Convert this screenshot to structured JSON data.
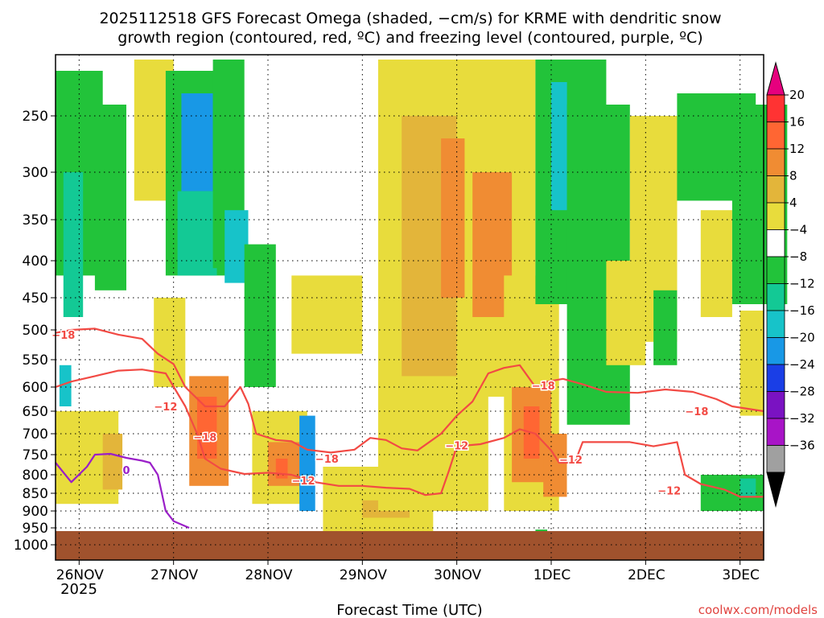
{
  "chart_data": {
    "type": "heatmap",
    "title_line1": "2025112518 GFS Forecast Omega (shaded, −cm/s) for KRME with dendritic snow",
    "title_line2": "growth region (contoured, red, ºC) and freezing level (contoured, purple, ºC)",
    "xlabel": "Forecast Time (UTC)",
    "credit": "coolwx.com/models",
    "y_axis": {
      "scale": "pressure",
      "reversed": true,
      "ticks": [
        250,
        300,
        350,
        400,
        450,
        500,
        550,
        600,
        650,
        700,
        750,
        800,
        850,
        900,
        950,
        1000
      ],
      "tick_labels": [
        "250",
        "300",
        "350",
        "400",
        "450",
        "500",
        "550",
        "600",
        "650",
        "700",
        "750",
        "800",
        "850",
        "900",
        "950",
        "1000"
      ],
      "range": [
        200,
        1012
      ]
    },
    "x_axis": {
      "range": [
        "2025-11-25T18",
        "2025-12-03T06"
      ],
      "ticks": [
        "2025-11-26T00",
        "2025-11-27T00",
        "2025-11-28T00",
        "2025-11-29T00",
        "2025-11-30T00",
        "2025-12-01T00",
        "2025-12-02T00",
        "2025-12-03T00"
      ],
      "tick_labels": [
        "26NOV",
        "27NOV",
        "28NOV",
        "29NOV",
        "30NOV",
        "1DEC",
        "2DEC",
        "3DEC"
      ],
      "sub_label": "2025"
    },
    "grid": true,
    "legend_position": "right",
    "colorbar": {
      "labels": [
        "20",
        "16",
        "12",
        "8",
        "4",
        "−4",
        "−8",
        "−12",
        "−16",
        "−20",
        "−24",
        "−28",
        "−32",
        "−36"
      ],
      "top_arrow_color": "#e6007e",
      "bottom_arrow_color": "#000000",
      "colors": [
        "#ff3333",
        "#ff6633",
        "#f08c33",
        "#e3b53a",
        "#e8dc3c",
        "#ffffff",
        "#22c33a",
        "#13c995",
        "#17c3c9",
        "#1898e6",
        "#1a3ee6",
        "#7a12c2",
        "#a814c7",
        "#a0a0a0"
      ]
    },
    "ground_color": "#a0522d",
    "omega_cells": [
      {
        "t": "2025-11-25T18",
        "hours": 12,
        "p_top": 210,
        "p_bot": 420,
        "value": -9
      },
      {
        "t": "2025-11-25T20",
        "hours": 5,
        "p_top": 300,
        "p_bot": 480,
        "value": -13
      },
      {
        "t": "2025-11-25T19",
        "hours": 3,
        "p_top": 560,
        "p_bot": 640,
        "value": -17
      },
      {
        "t": "2025-11-26T04",
        "hours": 8,
        "p_top": 240,
        "p_bot": 440,
        "value": -10
      },
      {
        "t": "2025-11-25T18",
        "hours": 16,
        "p_top": 650,
        "p_bot": 880,
        "value": 5
      },
      {
        "t": "2025-11-26T06",
        "hours": 5,
        "p_top": 700,
        "p_bot": 840,
        "value": 9
      },
      {
        "t": "2025-11-26T14",
        "hours": 10,
        "p_top": 200,
        "p_bot": 330,
        "value": 5
      },
      {
        "t": "2025-11-26T22",
        "hours": 16,
        "p_top": 210,
        "p_bot": 420,
        "value": -10
      },
      {
        "t": "2025-11-27T02",
        "hours": 8,
        "p_top": 230,
        "p_bot": 320,
        "value": -21
      },
      {
        "t": "2025-11-27T01",
        "hours": 10,
        "p_top": 320,
        "p_bot": 420,
        "value": -14
      },
      {
        "t": "2025-11-27T10",
        "hours": 8,
        "p_top": 200,
        "p_bot": 410,
        "value": -9
      },
      {
        "t": "2025-11-27T13",
        "hours": 6,
        "p_top": 340,
        "p_bot": 430,
        "value": -17
      },
      {
        "t": "2025-11-27T18",
        "hours": 8,
        "p_top": 380,
        "p_bot": 600,
        "value": -8
      },
      {
        "t": "2025-11-26T19",
        "hours": 8,
        "p_top": 450,
        "p_bot": 600,
        "value": 5
      },
      {
        "t": "2025-11-27T04",
        "hours": 10,
        "p_top": 580,
        "p_bot": 830,
        "value": 10
      },
      {
        "t": "2025-11-27T06",
        "hours": 5,
        "p_top": 620,
        "p_bot": 760,
        "value": 16
      },
      {
        "t": "2025-11-27T20",
        "hours": 14,
        "p_top": 650,
        "p_bot": 880,
        "value": 5
      },
      {
        "t": "2025-11-28T00",
        "hours": 8,
        "p_top": 720,
        "p_bot": 830,
        "value": 10
      },
      {
        "t": "2025-11-28T02",
        "hours": 3,
        "p_top": 760,
        "p_bot": 810,
        "value": 17
      },
      {
        "t": "2025-11-28T08",
        "hours": 4,
        "p_top": 660,
        "p_bot": 900,
        "value": -19
      },
      {
        "t": "2025-11-28T06",
        "hours": 18,
        "p_top": 420,
        "p_bot": 540,
        "value": 5
      },
      {
        "t": "2025-11-28T14",
        "hours": 28,
        "p_top": 780,
        "p_bot": 960,
        "value": 5
      },
      {
        "t": "2025-11-29T00",
        "hours": 12,
        "p_top": 870,
        "p_bot": 920,
        "value": 9
      },
      {
        "t": "2025-11-29T04",
        "hours": 28,
        "p_top": 200,
        "p_bot": 900,
        "value": 5
      },
      {
        "t": "2025-11-29T10",
        "hours": 14,
        "p_top": 250,
        "p_bot": 580,
        "value": 9
      },
      {
        "t": "2025-11-29T20",
        "hours": 10,
        "p_top": 270,
        "p_bot": 450,
        "value": 12
      },
      {
        "t": "2025-11-30T02",
        "hours": 18,
        "p_top": 200,
        "p_bot": 620,
        "value": 5
      },
      {
        "t": "2025-11-30T04",
        "hours": 10,
        "p_top": 300,
        "p_bot": 480,
        "value": 10
      },
      {
        "t": "2025-11-30T12",
        "hours": 14,
        "p_top": 420,
        "p_bot": 900,
        "value": 5
      },
      {
        "t": "2025-11-30T14",
        "hours": 10,
        "p_top": 600,
        "p_bot": 820,
        "value": 10
      },
      {
        "t": "2025-11-30T17",
        "hours": 4,
        "p_top": 640,
        "p_bot": 760,
        "value": 17
      },
      {
        "t": "2025-11-30T22",
        "hours": 6,
        "p_top": 700,
        "p_bot": 860,
        "value": 12
      },
      {
        "t": "2025-11-30T20",
        "hours": 18,
        "p_top": 200,
        "p_bot": 460,
        "value": -8
      },
      {
        "t": "2025-12-01T00",
        "hours": 4,
        "p_top": 220,
        "p_bot": 340,
        "value": -17
      },
      {
        "t": "2025-12-01T04",
        "hours": 16,
        "p_top": 240,
        "p_bot": 680,
        "value": -7
      },
      {
        "t": "2025-12-01T14",
        "hours": 10,
        "p_top": 400,
        "p_bot": 560,
        "value": 5
      },
      {
        "t": "2025-12-01T20",
        "hours": 12,
        "p_top": 250,
        "p_bot": 520,
        "value": 5
      },
      {
        "t": "2025-12-02T02",
        "hours": 6,
        "p_top": 440,
        "p_bot": 560,
        "value": -8
      },
      {
        "t": "2025-12-02T08",
        "hours": 20,
        "p_top": 230,
        "p_bot": 330,
        "value": -9
      },
      {
        "t": "2025-12-02T14",
        "hours": 8,
        "p_top": 340,
        "p_bot": 480,
        "value": 5
      },
      {
        "t": "2025-12-02T22",
        "hours": 14,
        "p_top": 240,
        "p_bot": 460,
        "value": -9
      },
      {
        "t": "2025-12-03T00",
        "hours": 6,
        "p_top": 470,
        "p_bot": 660,
        "value": 5
      },
      {
        "t": "2025-12-02T14",
        "hours": 16,
        "p_top": 800,
        "p_bot": 900,
        "value": -9
      },
      {
        "t": "2025-12-03T00",
        "hours": 4,
        "p_top": 810,
        "p_bot": 860,
        "value": -13
      },
      {
        "t": "2025-11-30T20",
        "hours": 3,
        "p_top": 955,
        "p_bot": 965,
        "value": -9
      }
    ],
    "contours": [
      {
        "level": "-18",
        "color": "#f24a44",
        "points": [
          [
            "2025-11-25T18",
            505
          ],
          [
            "2025-11-25T22",
            500
          ],
          [
            "2025-11-26T04",
            498
          ],
          [
            "2025-11-26T10",
            508
          ],
          [
            "2025-11-26T16",
            515
          ],
          [
            "2025-11-26T20",
            540
          ],
          [
            "2025-11-27T00",
            558
          ],
          [
            "2025-11-27T03",
            600
          ],
          [
            "2025-11-27T08",
            640
          ],
          [
            "2025-11-27T13",
            640
          ],
          [
            "2025-11-27T17",
            600
          ],
          [
            "2025-11-27T19",
            635
          ],
          [
            "2025-11-27T21",
            700
          ],
          [
            "2025-11-28T02",
            715
          ],
          [
            "2025-11-28T06",
            718
          ],
          [
            "2025-11-28T10",
            738
          ],
          [
            "2025-11-28T16",
            745
          ],
          [
            "2025-11-28T22",
            738
          ],
          [
            "2025-11-29T02",
            710
          ],
          [
            "2025-11-29T06",
            715
          ],
          [
            "2025-11-29T10",
            735
          ],
          [
            "2025-11-29T14",
            740
          ],
          [
            "2025-11-29T20",
            700
          ],
          [
            "2025-11-30T00",
            660
          ],
          [
            "2025-11-30T04",
            630
          ],
          [
            "2025-11-30T08",
            575
          ],
          [
            "2025-11-30T12",
            565
          ],
          [
            "2025-11-30T16",
            560
          ],
          [
            "2025-11-30T20",
            600
          ],
          [
            "2025-11-30T23",
            590
          ],
          [
            "2025-12-01T03",
            585
          ],
          [
            "2025-12-01T08",
            595
          ],
          [
            "2025-12-01T14",
            610
          ],
          [
            "2025-12-01T22",
            612
          ],
          [
            "2025-12-02T05",
            605
          ],
          [
            "2025-12-02T12",
            610
          ],
          [
            "2025-12-02T18",
            625
          ],
          [
            "2025-12-02T22",
            640
          ],
          [
            "2025-12-03T02",
            645
          ],
          [
            "2025-12-03T06",
            650
          ]
        ]
      },
      {
        "level": "-12",
        "color": "#f24a44",
        "points": [
          [
            "2025-11-25T18",
            600
          ],
          [
            "2025-11-25T22",
            590
          ],
          [
            "2025-11-26T04",
            580
          ],
          [
            "2025-11-26T10",
            570
          ],
          [
            "2025-11-26T16",
            568
          ],
          [
            "2025-11-26T22",
            575
          ],
          [
            "2025-11-27T03",
            640
          ],
          [
            "2025-11-27T06",
            700
          ],
          [
            "2025-11-27T08",
            760
          ],
          [
            "2025-11-27T12",
            785
          ],
          [
            "2025-11-27T18",
            798
          ],
          [
            "2025-11-28T00",
            795
          ],
          [
            "2025-11-28T06",
            800
          ],
          [
            "2025-11-28T12",
            820
          ],
          [
            "2025-11-28T18",
            830
          ],
          [
            "2025-11-29T00",
            830
          ],
          [
            "2025-11-29T06",
            835
          ],
          [
            "2025-11-29T12",
            838
          ],
          [
            "2025-11-29T16",
            855
          ],
          [
            "2025-11-29T20",
            850
          ],
          [
            "2025-11-29T22",
            790
          ],
          [
            "2025-11-30T00",
            730
          ],
          [
            "2025-11-30T06",
            725
          ],
          [
            "2025-11-30T12",
            710
          ],
          [
            "2025-11-30T16",
            690
          ],
          [
            "2025-11-30T20",
            700
          ],
          [
            "2025-12-01T00",
            740
          ],
          [
            "2025-12-01T02",
            770
          ],
          [
            "2025-12-01T06",
            770
          ],
          [
            "2025-12-01T08",
            720
          ],
          [
            "2025-12-01T14",
            720
          ],
          [
            "2025-12-01T20",
            720
          ],
          [
            "2025-12-02T02",
            730
          ],
          [
            "2025-12-02T08",
            720
          ],
          [
            "2025-12-02T10",
            800
          ],
          [
            "2025-12-02T14",
            825
          ],
          [
            "2025-12-02T20",
            840
          ],
          [
            "2025-12-03T00",
            860
          ],
          [
            "2025-12-03T06",
            860
          ]
        ]
      },
      {
        "level": "0",
        "color": "#9a1fc8",
        "points": [
          [
            "2025-11-25T18",
            770
          ],
          [
            "2025-11-25T22",
            820
          ],
          [
            "2025-11-26T02",
            780
          ],
          [
            "2025-11-26T04",
            750
          ],
          [
            "2025-11-26T08",
            748
          ],
          [
            "2025-11-26T12",
            758
          ],
          [
            "2025-11-26T16",
            765
          ],
          [
            "2025-11-26T18",
            770
          ],
          [
            "2025-11-26T20",
            800
          ],
          [
            "2025-11-26T22",
            900
          ],
          [
            "2025-11-27T00",
            930
          ],
          [
            "2025-11-27T04",
            950
          ]
        ]
      }
    ],
    "contour_labels": [
      {
        "text": "−18",
        "t": "2025-11-25T20",
        "p": 508,
        "color": "#f24a44"
      },
      {
        "text": "−12",
        "t": "2025-11-26T22",
        "p": 640,
        "color": "#f24a44"
      },
      {
        "text": "−18",
        "t": "2025-11-27T08",
        "p": 708,
        "color": "#f24a44"
      },
      {
        "text": "−12",
        "t": "2025-11-28T09",
        "p": 815,
        "color": "#f24a44"
      },
      {
        "text": "−18",
        "t": "2025-11-28T15",
        "p": 760,
        "color": "#f24a44"
      },
      {
        "text": "−12",
        "t": "2025-11-30T00",
        "p": 728,
        "color": "#f24a44"
      },
      {
        "text": "−18",
        "t": "2025-11-30T22",
        "p": 597,
        "color": "#f24a44"
      },
      {
        "text": "−12",
        "t": "2025-12-01T05",
        "p": 762,
        "color": "#f24a44"
      },
      {
        "text": "−12",
        "t": "2025-12-02T06",
        "p": 842,
        "color": "#f24a44"
      },
      {
        "text": "−18",
        "t": "2025-12-02T13",
        "p": 650,
        "color": "#f24a44"
      },
      {
        "text": "0",
        "t": "2025-11-26T12",
        "p": 788,
        "color": "#9a1fc8"
      }
    ]
  }
}
